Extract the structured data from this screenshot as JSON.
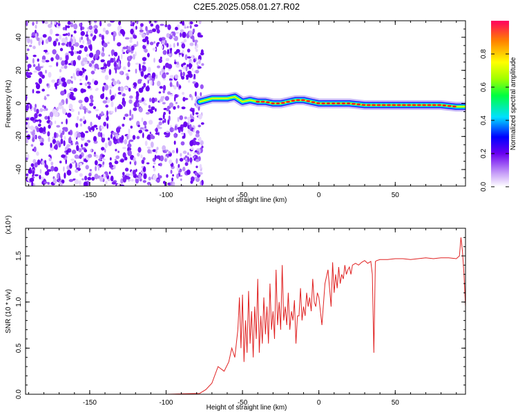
{
  "title": "C2E5.2025.058.01.27.R02",
  "chart_data": [
    {
      "type": "heatmap",
      "title": "C2E5.2025.058.01.27.R02",
      "xlabel": "Height of straight line (km)",
      "ylabel": "Frequency (Hz)",
      "xlim": [
        -192,
        96
      ],
      "ylim": [
        -50,
        50
      ],
      "x_ticks": [
        "-150",
        "-100",
        "-50",
        "0",
        "50"
      ],
      "y_ticks": [
        "-40",
        "-20",
        "0",
        "20",
        "40"
      ],
      "colorbar": {
        "label": "Normalized spectral amplitude",
        "range": [
          0,
          1
        ],
        "ticks": [
          "0.0",
          "0.2",
          "0.4",
          "0.6",
          "0.8"
        ]
      },
      "noise_region_x": [
        -192,
        -76
      ],
      "signal_track": {
        "x": [
          -78,
          -70,
          -60,
          -55,
          -50,
          -45,
          -40,
          -35,
          -30,
          -25,
          -20,
          -15,
          -10,
          -5,
          0,
          10,
          20,
          30,
          40,
          50,
          60,
          70,
          80,
          90,
          96
        ],
        "frequency": [
          1,
          3,
          3,
          4,
          1,
          2,
          1,
          1,
          0,
          0,
          1,
          2,
          2,
          1,
          0,
          0,
          0,
          -1,
          -1,
          -1,
          -1,
          -1,
          -1,
          -2,
          -2
        ]
      }
    },
    {
      "type": "line",
      "xlabel": "Height of straight line (km)",
      "ylabel": "SNR (10 * v/v)",
      "y_multiplier": "(x10⁴)",
      "xlim": [
        -192,
        96
      ],
      "ylim": [
        0,
        1.8
      ],
      "x_ticks": [
        "-150",
        "-100",
        "-50",
        "0",
        "50"
      ],
      "y_ticks": [
        "0.0",
        "0.5",
        "1.0",
        "1.5"
      ],
      "color": "#e02020",
      "series": [
        {
          "x": [
            -192,
            -100,
            -78,
            -74,
            -70,
            -66,
            -62,
            -59,
            -57,
            -55,
            -53,
            -52,
            -51,
            -50,
            -49,
            -48,
            -47,
            -46,
            -45,
            -44,
            -43,
            -42,
            -41,
            -40,
            -39,
            -38,
            -37,
            -36,
            -35,
            -34,
            -33,
            -32,
            -31,
            -30,
            -29,
            -28,
            -27,
            -26,
            -25,
            -24,
            -23,
            -22,
            -21,
            -20,
            -19,
            -18,
            -17,
            -16,
            -15,
            -14,
            -13,
            -12,
            -11,
            -10,
            -9,
            -8,
            -7,
            -6,
            -5,
            -4,
            -3,
            -2,
            -1,
            0,
            2,
            4,
            6,
            8,
            9,
            10,
            11,
            12,
            13,
            14,
            15,
            16,
            17,
            18,
            19,
            20,
            21,
            22,
            24,
            26,
            28,
            30,
            32,
            34,
            35,
            36,
            37,
            38,
            40,
            45,
            50,
            55,
            60,
            65,
            70,
            75,
            80,
            85,
            90,
            92,
            93,
            94,
            95,
            96
          ],
          "y": [
            0.0,
            0.0,
            0.01,
            0.05,
            0.12,
            0.3,
            0.25,
            0.35,
            0.5,
            0.4,
            0.7,
            1.05,
            0.5,
            1.08,
            0.35,
            0.8,
            0.45,
            1.12,
            0.55,
            0.9,
            0.4,
            0.95,
            0.6,
            1.25,
            0.45,
            0.85,
            0.55,
            1.05,
            0.65,
            0.95,
            0.55,
            1.2,
            0.7,
            0.9,
            0.6,
            1.35,
            0.75,
            1.0,
            0.7,
            1.4,
            0.8,
            0.95,
            0.75,
            1.1,
            0.7,
            0.9,
            0.8,
            1.02,
            0.55,
            0.85,
            0.85,
            1.15,
            0.8,
            0.95,
            0.85,
            1.1,
            0.95,
            1.05,
            0.9,
            1.25,
            1.0,
            0.95,
            1.1,
            1.05,
            0.75,
            1.2,
            1.35,
            0.95,
            1.43,
            1.1,
            1.3,
            1.15,
            1.38,
            1.2,
            1.3,
            1.25,
            1.4,
            1.3,
            1.35,
            1.38,
            1.3,
            1.4,
            1.42,
            1.4,
            1.43,
            1.45,
            1.42,
            1.44,
            1.3,
            0.45,
            1.44,
            1.45,
            1.46,
            1.46,
            1.47,
            1.47,
            1.46,
            1.47,
            1.48,
            1.47,
            1.48,
            1.48,
            1.47,
            1.5,
            1.7,
            1.55,
            1.3,
            0.95
          ]
        }
      ]
    }
  ]
}
